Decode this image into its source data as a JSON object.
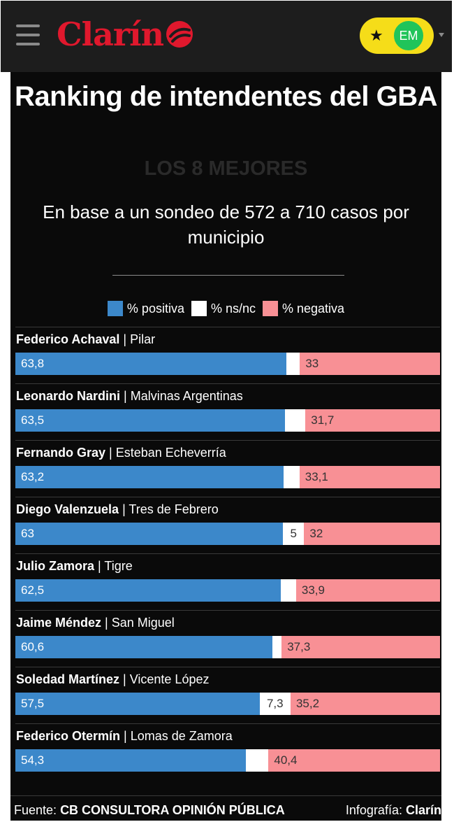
{
  "header": {
    "brand": "Clarín",
    "user_initials": "EM",
    "star_icon": "★",
    "colors": {
      "brand": "#e0182d",
      "pill": "#f5dd19",
      "avatar": "#20c45a"
    }
  },
  "infographic": {
    "title": "Ranking de intendentes del GBA",
    "subtitle": "LOS 8 MEJORES",
    "description": "En base a un sondeo de 572 a 710 casos por municipio",
    "legend": {
      "positive": "% positiva",
      "nsnc": "% ns/nc",
      "negative": "% negativa"
    },
    "colors": {
      "positive": "#3c88ca",
      "nsnc": "#ffffff",
      "negative": "#f89095"
    },
    "footer": {
      "source_label": "Fuente:",
      "source_value": "CB CONSULTORA OPINIÓN PÚBLICA",
      "credit_label": "Infografía:",
      "credit_value": "Clarín"
    }
  },
  "chart_data": {
    "type": "bar",
    "orientation": "horizontal-stacked",
    "title": "Ranking de intendentes del GBA",
    "categories": [
      "Federico Achaval | Pilar",
      "Leonardo Nardini | Malvinas Argentinas",
      "Fernando Gray | Esteban Echeverría",
      "Diego Valenzuela | Tres de Febrero",
      "Julio Zamora | Tigre",
      "Jaime Méndez | San Miguel",
      "Soledad Martínez | Vicente López",
      "Federico Otermín | Lomas de Zamora"
    ],
    "rows": [
      {
        "name": "Federico Achaval",
        "municipio": "Pilar",
        "pos": 63.8,
        "pos_label": "63,8",
        "ns": 3.2,
        "ns_label": "",
        "neg": 33,
        "neg_label": "33"
      },
      {
        "name": "Leonardo Nardini",
        "municipio": "Malvinas Argentinas",
        "pos": 63.5,
        "pos_label": "63,5",
        "ns": 4.8,
        "ns_label": "",
        "neg": 31.7,
        "neg_label": "31,7"
      },
      {
        "name": "Fernando Gray",
        "municipio": "Esteban Echeverría",
        "pos": 63.2,
        "pos_label": "63,2",
        "ns": 3.7,
        "ns_label": "",
        "neg": 33.1,
        "neg_label": "33,1"
      },
      {
        "name": "Diego Valenzuela",
        "municipio": "Tres de Febrero",
        "pos": 63,
        "pos_label": "63",
        "ns": 5,
        "ns_label": "5",
        "neg": 32,
        "neg_label": "32"
      },
      {
        "name": "Julio Zamora",
        "municipio": "Tigre",
        "pos": 62.5,
        "pos_label": "62,5",
        "ns": 3.6,
        "ns_label": "",
        "neg": 33.9,
        "neg_label": "33,9"
      },
      {
        "name": "Jaime Méndez",
        "municipio": "San Miguel",
        "pos": 60.6,
        "pos_label": "60,6",
        "ns": 2.1,
        "ns_label": "",
        "neg": 37.3,
        "neg_label": "37,3"
      },
      {
        "name": "Soledad Martínez",
        "municipio": "Vicente López",
        "pos": 57.5,
        "pos_label": "57,5",
        "ns": 7.3,
        "ns_label": "7,3",
        "neg": 35.2,
        "neg_label": "35,2"
      },
      {
        "name": "Federico Otermín",
        "municipio": "Lomas de Zamora",
        "pos": 54.3,
        "pos_label": "54,3",
        "ns": 5.3,
        "ns_label": "",
        "neg": 40.4,
        "neg_label": "40,4"
      }
    ],
    "series": [
      {
        "name": "% positiva"
      },
      {
        "name": "% ns/nc"
      },
      {
        "name": "% negativa"
      }
    ],
    "xlim": [
      0,
      100
    ],
    "legend_position": "top-center"
  }
}
